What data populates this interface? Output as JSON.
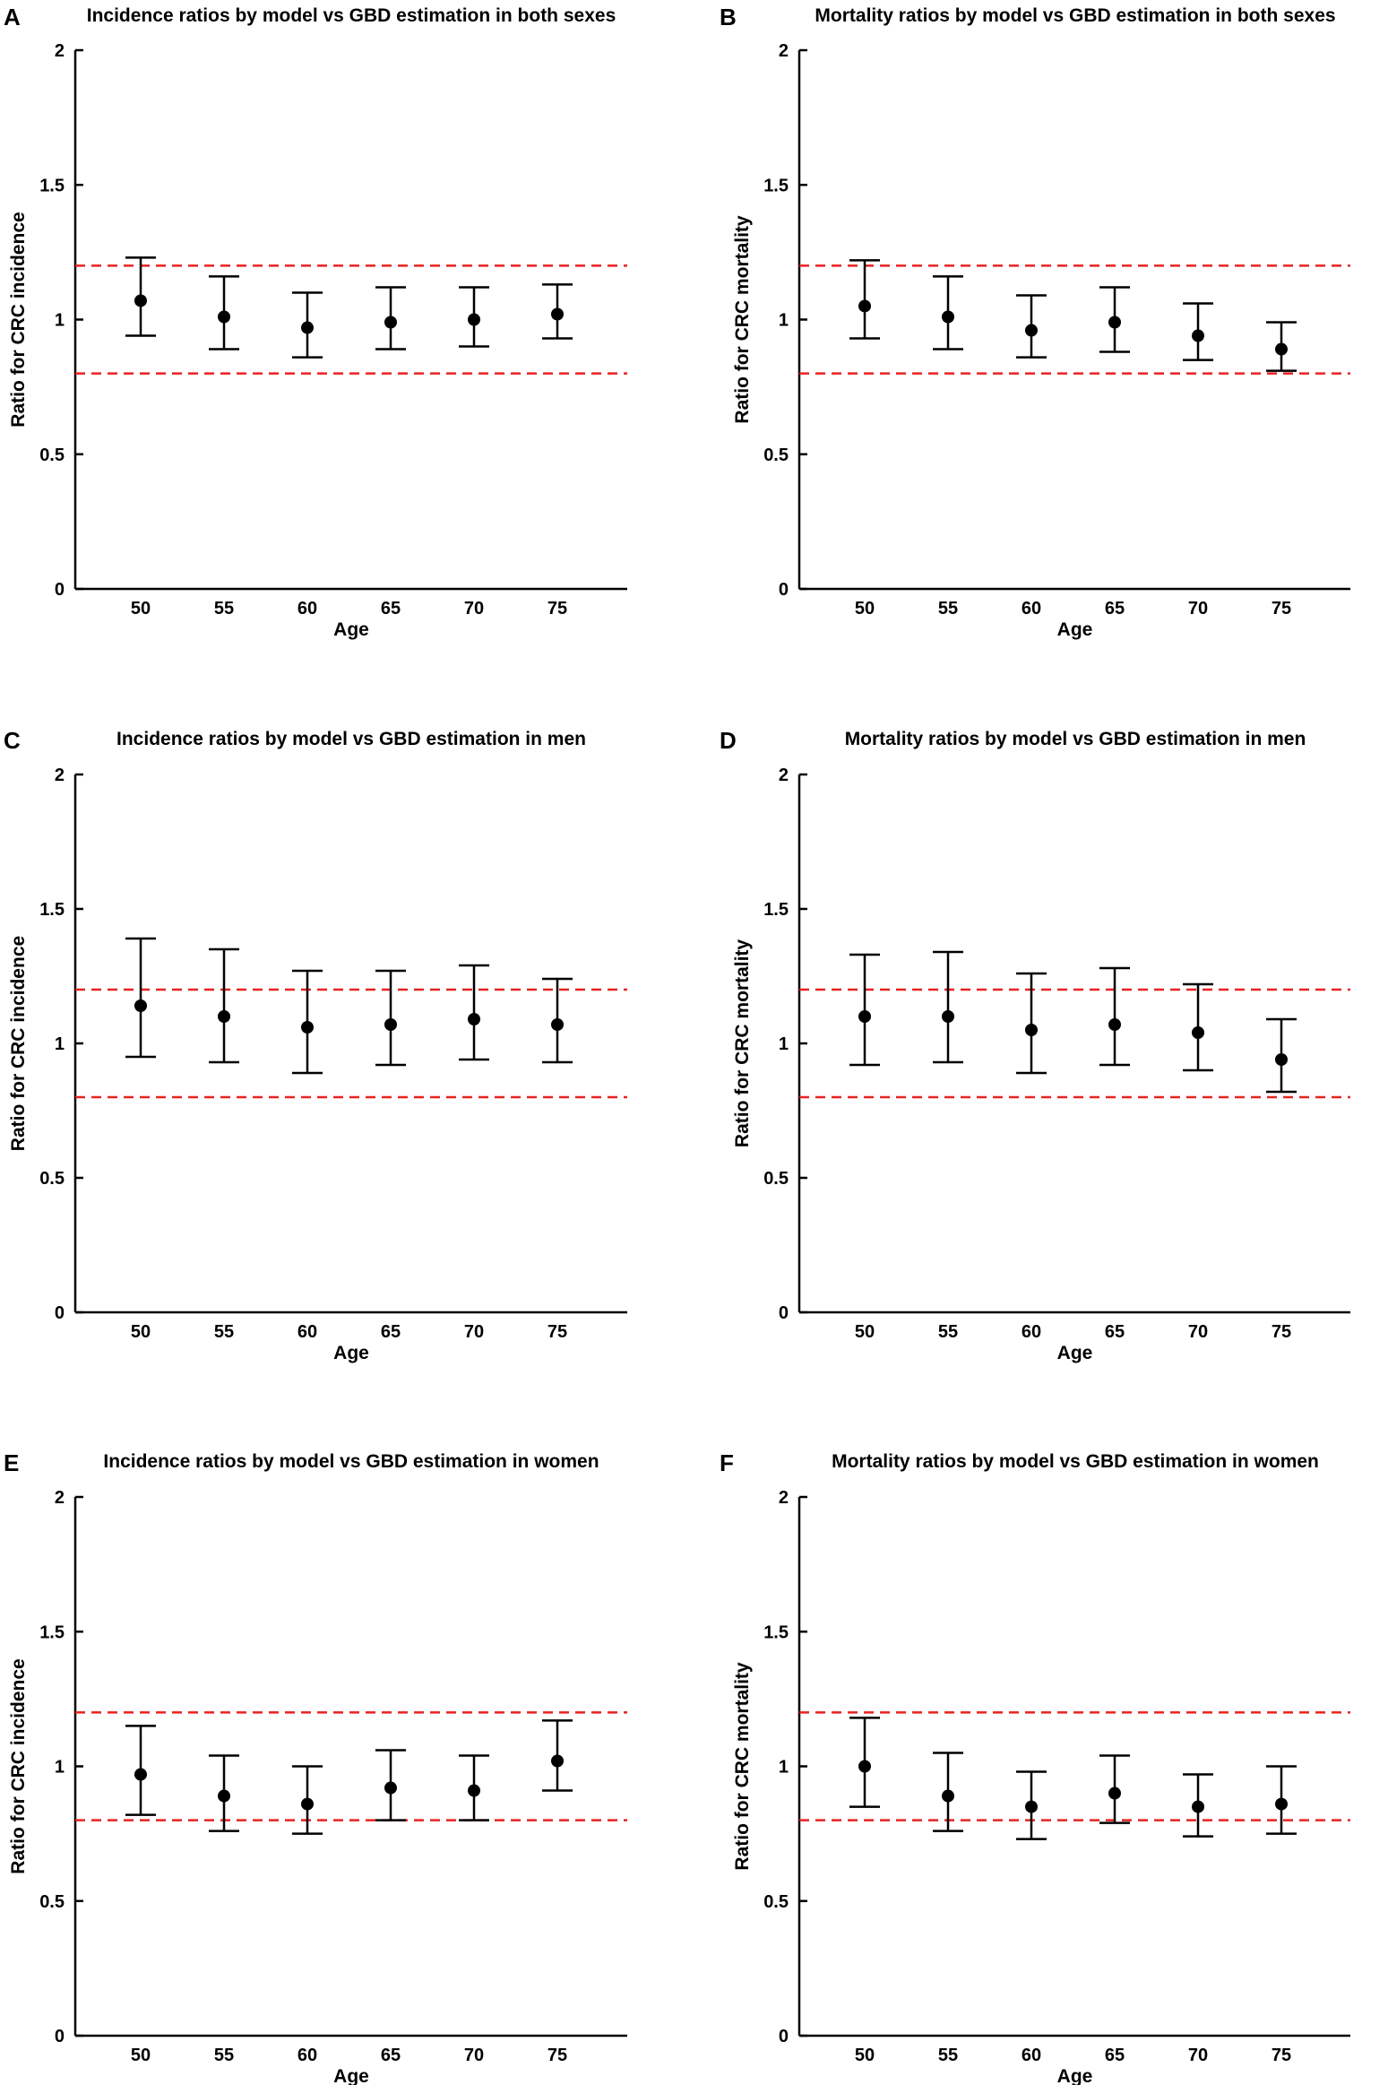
{
  "chart_data": [
    {
      "panel": "A",
      "type": "errorbar",
      "title": "Incidence ratios by model vs GBD estimation in both sexes",
      "xlabel": "Age",
      "ylabel": "Ratio for CRC incidence",
      "ylim": [
        0,
        2
      ],
      "yticks": [
        "0",
        "0.5",
        "1",
        "1.5",
        "2"
      ],
      "categories": [
        "50",
        "55",
        "60",
        "65",
        "70",
        "75"
      ],
      "values": [
        1.07,
        1.01,
        0.97,
        0.99,
        1.0,
        1.02
      ],
      "lower": [
        0.94,
        0.89,
        0.86,
        0.89,
        0.9,
        0.93
      ],
      "upper": [
        1.23,
        1.16,
        1.1,
        1.12,
        1.12,
        1.13
      ],
      "reference_lines": [
        0.8,
        1.2
      ]
    },
    {
      "panel": "B",
      "type": "errorbar",
      "title": "Mortality ratios by model vs GBD estimation in both sexes",
      "xlabel": "Age",
      "ylabel": "Ratio for CRC mortality",
      "ylim": [
        0,
        2
      ],
      "yticks": [
        "0",
        "0.5",
        "1",
        "1.5",
        "2"
      ],
      "categories": [
        "50",
        "55",
        "60",
        "65",
        "70",
        "75"
      ],
      "values": [
        1.05,
        1.01,
        0.96,
        0.99,
        0.94,
        0.89
      ],
      "lower": [
        0.93,
        0.89,
        0.86,
        0.88,
        0.85,
        0.81
      ],
      "upper": [
        1.22,
        1.16,
        1.09,
        1.12,
        1.06,
        0.99
      ],
      "reference_lines": [
        0.8,
        1.2
      ]
    },
    {
      "panel": "C",
      "type": "errorbar",
      "title": "Incidence ratios by model vs GBD estimation in men",
      "xlabel": "Age",
      "ylabel": "Ratio for CRC incidence",
      "ylim": [
        0,
        2
      ],
      "yticks": [
        "0",
        "0.5",
        "1",
        "1.5",
        "2"
      ],
      "categories": [
        "50",
        "55",
        "60",
        "65",
        "70",
        "75"
      ],
      "values": [
        1.14,
        1.1,
        1.06,
        1.07,
        1.09,
        1.07
      ],
      "lower": [
        0.95,
        0.93,
        0.89,
        0.92,
        0.94,
        0.93
      ],
      "upper": [
        1.39,
        1.35,
        1.27,
        1.27,
        1.29,
        1.24
      ],
      "reference_lines": [
        0.8,
        1.2
      ]
    },
    {
      "panel": "D",
      "type": "errorbar",
      "title": "Mortality ratios by model vs GBD estimation in men",
      "xlabel": "Age",
      "ylabel": "Ratio for CRC mortality",
      "ylim": [
        0,
        2
      ],
      "yticks": [
        "0",
        "0.5",
        "1",
        "1.5",
        "2"
      ],
      "categories": [
        "50",
        "55",
        "60",
        "65",
        "70",
        "75"
      ],
      "values": [
        1.1,
        1.1,
        1.05,
        1.07,
        1.04,
        0.94
      ],
      "lower": [
        0.92,
        0.93,
        0.89,
        0.92,
        0.9,
        0.82
      ],
      "upper": [
        1.33,
        1.34,
        1.26,
        1.28,
        1.22,
        1.09
      ],
      "reference_lines": [
        0.8,
        1.2
      ]
    },
    {
      "panel": "E",
      "type": "errorbar",
      "title": "Incidence ratios by model vs GBD estimation in women",
      "xlabel": "Age",
      "ylabel": "Ratio for CRC incidence",
      "ylim": [
        0,
        2
      ],
      "yticks": [
        "0",
        "0.5",
        "1",
        "1.5",
        "2"
      ],
      "categories": [
        "50",
        "55",
        "60",
        "65",
        "70",
        "75"
      ],
      "values": [
        0.97,
        0.89,
        0.86,
        0.92,
        0.91,
        1.02
      ],
      "lower": [
        0.82,
        0.76,
        0.75,
        0.8,
        0.8,
        0.91
      ],
      "upper": [
        1.15,
        1.04,
        1.0,
        1.06,
        1.04,
        1.17
      ],
      "reference_lines": [
        0.8,
        1.2
      ]
    },
    {
      "panel": "F",
      "type": "errorbar",
      "title": "Mortality ratios by model vs GBD estimation in women",
      "xlabel": "Age",
      "ylabel": "Ratio for CRC mortality",
      "ylim": [
        0,
        2
      ],
      "yticks": [
        "0",
        "0.5",
        "1",
        "1.5",
        "2"
      ],
      "categories": [
        "50",
        "55",
        "60",
        "65",
        "70",
        "75"
      ],
      "values": [
        1.0,
        0.89,
        0.85,
        0.9,
        0.85,
        0.86
      ],
      "lower": [
        0.85,
        0.76,
        0.73,
        0.79,
        0.74,
        0.75
      ],
      "upper": [
        1.18,
        1.05,
        0.98,
        1.04,
        0.97,
        1.0
      ],
      "reference_lines": [
        0.8,
        1.2
      ]
    }
  ]
}
